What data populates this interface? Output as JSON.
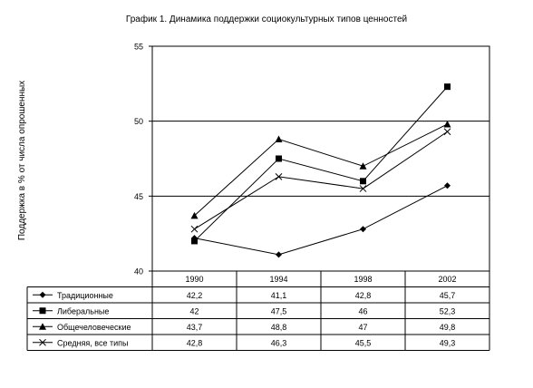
{
  "chart_data": {
    "type": "line",
    "title": "График 1. Динамика поддержки социокультурных типов ценностей",
    "ylabel": "Поддержка в % от числа опрошенных",
    "xlabel": "",
    "ylim": [
      40,
      55
    ],
    "yticks": [
      40,
      45,
      50,
      55
    ],
    "ytick_labels": [
      "40",
      "45",
      "50",
      "55"
    ],
    "gridlines": [
      45,
      50
    ],
    "grid": true,
    "legend": "data-table",
    "categories": [
      "1990",
      "1994",
      "1998",
      "2002"
    ],
    "series": [
      {
        "name": "Традиционные",
        "marker": "diamond",
        "values": [
          42.2,
          41.1,
          42.8,
          45.7
        ],
        "labels": [
          "42,2",
          "41,1",
          "42,8",
          "45,7"
        ]
      },
      {
        "name": "Либеральные",
        "marker": "square",
        "values": [
          42,
          47.5,
          46,
          52.3
        ],
        "labels": [
          "42",
          "47,5",
          "46",
          "52,3"
        ]
      },
      {
        "name": "Общечеловеческие",
        "marker": "triangle",
        "values": [
          43.7,
          48.8,
          47,
          49.8
        ],
        "labels": [
          "43,7",
          "48,8",
          "47",
          "49,8"
        ]
      },
      {
        "name": "Средняя, все типы",
        "marker": "x",
        "values": [
          42.8,
          46.3,
          45.5,
          49.3
        ],
        "labels": [
          "42,8",
          "46,3",
          "45,5",
          "49,3"
        ]
      }
    ],
    "line_color": "#000000"
  }
}
